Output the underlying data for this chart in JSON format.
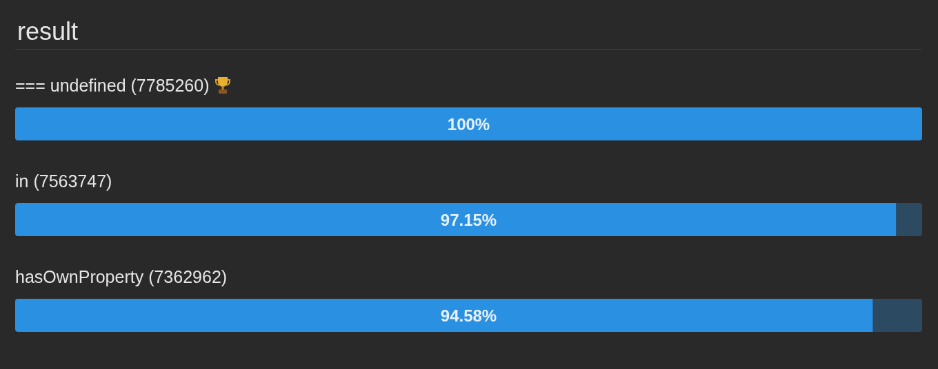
{
  "chart_data": {
    "type": "bar",
    "title": "result",
    "orientation": "horizontal",
    "stacked": true,
    "categories": [
      "=== undefined (7785260)",
      "in (7563747)",
      "hasOwnProperty (7362962)"
    ],
    "series": [
      {
        "color": "#2a90e2",
        "values": [
          100,
          97.15,
          94.58
        ],
        "value_labels": [
          "100%",
          "97.15%",
          "94.58%"
        ]
      },
      {
        "color": "#2c4a62",
        "values": [
          0,
          2.85,
          5.42
        ]
      }
    ],
    "xlim": [
      0,
      100
    ],
    "tick_labels": "y"
  }
}
